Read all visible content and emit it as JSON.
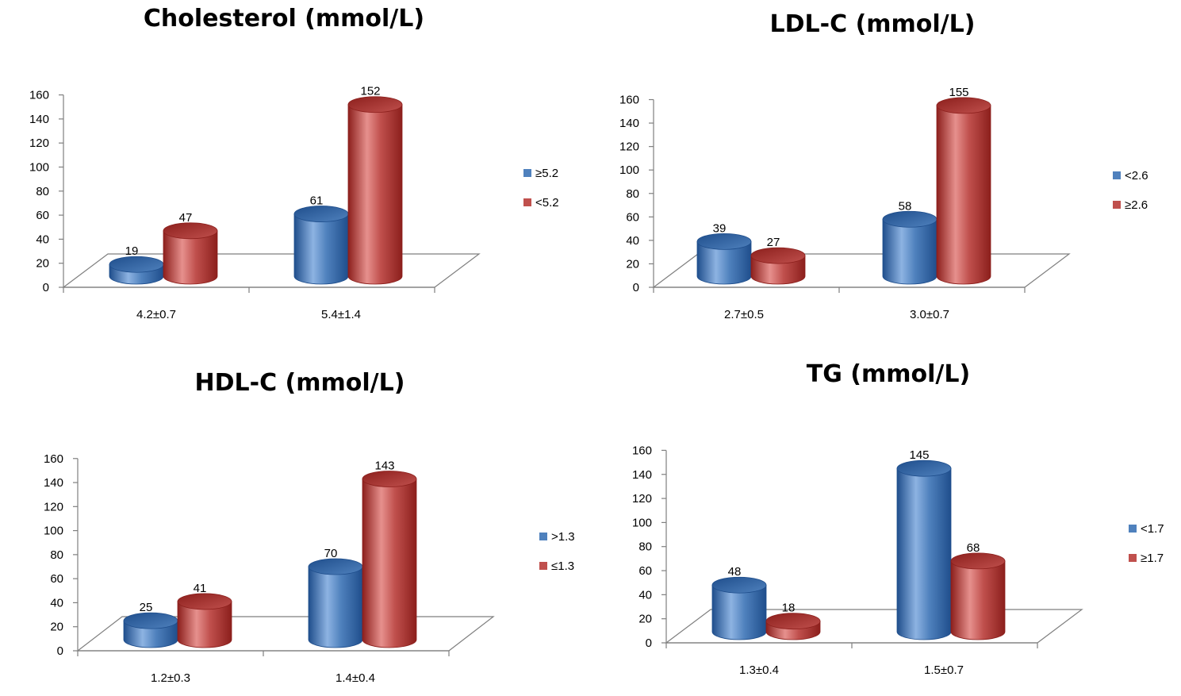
{
  "palette": {
    "blue": "#4f81bd",
    "blue_dark": "#1f4e8c",
    "blue_light": "#8db3e2",
    "red": "#c0504d",
    "red_dark": "#8c1f1c",
    "red_light": "#e6908d"
  },
  "chart_data": [
    {
      "type": "bar",
      "style": "3d-cylinder",
      "title": "Cholesterol (mmol/L)",
      "categories": [
        "4.2±0.7",
        "5.4±1.4"
      ],
      "series": [
        {
          "name": "≥5.2",
          "values": [
            19,
            61
          ],
          "color": "blue"
        },
        {
          "name": "<5.2",
          "values": [
            47,
            152
          ],
          "color": "red"
        }
      ],
      "ylim": [
        0,
        160
      ],
      "yticks": [
        0,
        20,
        40,
        60,
        80,
        100,
        120,
        140,
        160
      ],
      "legend": "right"
    },
    {
      "type": "bar",
      "style": "3d-cylinder",
      "title": "LDL-C (mmol/L)",
      "categories": [
        "2.7±0.5",
        "3.0±0.7"
      ],
      "series": [
        {
          "name": "<2.6",
          "values": [
            39,
            58
          ],
          "color": "blue"
        },
        {
          "name": "≥2.6",
          "values": [
            27,
            155
          ],
          "color": "red"
        }
      ],
      "ylim": [
        0,
        160
      ],
      "yticks": [
        0,
        20,
        40,
        60,
        80,
        100,
        120,
        140,
        160
      ],
      "legend": "right"
    },
    {
      "type": "bar",
      "style": "3d-cylinder",
      "title": "HDL-C (mmol/L)",
      "categories": [
        "1.2±0.3",
        "1.4±0.4"
      ],
      "series": [
        {
          "name": ">1.3",
          "values": [
            25,
            70
          ],
          "color": "blue"
        },
        {
          "name": "≤1.3",
          "values": [
            41,
            143
          ],
          "color": "red"
        }
      ],
      "ylim": [
        0,
        160
      ],
      "yticks": [
        0,
        20,
        40,
        60,
        80,
        100,
        120,
        140,
        160
      ],
      "legend": "right"
    },
    {
      "type": "bar",
      "style": "3d-cylinder",
      "title": "TG (mmol/L)",
      "categories": [
        "1.3±0.4",
        "1.5±0.7"
      ],
      "series": [
        {
          "name": "<1.7",
          "values": [
            48,
            145
          ],
          "color": "blue"
        },
        {
          "name": "≥1.7",
          "values": [
            18,
            68
          ],
          "color": "red"
        }
      ],
      "ylim": [
        0,
        160
      ],
      "yticks": [
        0,
        20,
        40,
        60,
        80,
        100,
        120,
        140,
        160
      ],
      "legend": "right"
    }
  ]
}
